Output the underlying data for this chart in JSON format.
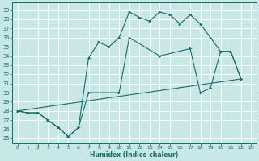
{
  "xlabel": "Humidex (Indice chaleur)",
  "bg_color": "#c8e8e8",
  "grid_color": "#ffffff",
  "line_color": "#1a6b6b",
  "xlim": [
    -0.5,
    23.5
  ],
  "ylim": [
    24.5,
    39.8
  ],
  "xticks": [
    0,
    1,
    2,
    3,
    4,
    5,
    6,
    7,
    8,
    9,
    10,
    11,
    12,
    13,
    14,
    15,
    16,
    17,
    18,
    19,
    20,
    21,
    22,
    23
  ],
  "yticks": [
    25,
    26,
    27,
    28,
    29,
    30,
    31,
    32,
    33,
    34,
    35,
    36,
    37,
    38,
    39
  ],
  "series_top": [
    [
      0,
      28.0
    ],
    [
      1,
      27.8
    ],
    [
      2,
      27.8
    ],
    [
      3,
      27.0
    ],
    [
      4,
      26.2
    ],
    [
      5,
      25.2
    ],
    [
      6,
      26.2
    ],
    [
      7,
      33.8
    ],
    [
      8,
      35.5
    ],
    [
      9,
      35.0
    ],
    [
      10,
      36.0
    ],
    [
      11,
      38.8
    ],
    [
      12,
      38.2
    ],
    [
      13,
      37.8
    ],
    [
      14,
      38.8
    ],
    [
      15,
      38.5
    ],
    [
      16,
      37.5
    ],
    [
      17,
      38.5
    ],
    [
      18,
      37.5
    ],
    [
      19,
      36.0
    ],
    [
      20,
      34.5
    ],
    [
      21,
      34.5
    ],
    [
      22,
      31.5
    ]
  ],
  "series_mid": [
    [
      0,
      28.0
    ],
    [
      1,
      27.8
    ],
    [
      2,
      27.8
    ],
    [
      3,
      27.0
    ],
    [
      4,
      26.2
    ],
    [
      5,
      25.2
    ],
    [
      6,
      26.2
    ],
    [
      7,
      30.0
    ],
    [
      10,
      30.0
    ],
    [
      11,
      36.0
    ],
    [
      14,
      34.0
    ],
    [
      17,
      34.8
    ],
    [
      18,
      30.0
    ],
    [
      19,
      30.5
    ],
    [
      20,
      34.5
    ],
    [
      21,
      34.5
    ],
    [
      22,
      31.5
    ]
  ],
  "series_diag": [
    [
      0,
      28.0
    ],
    [
      22,
      31.5
    ]
  ]
}
